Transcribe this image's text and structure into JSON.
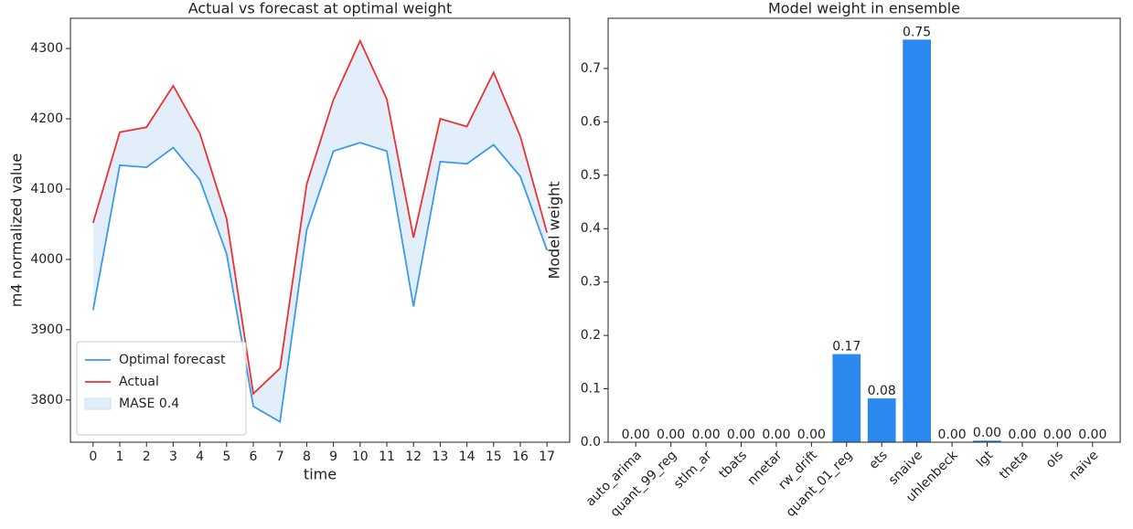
{
  "chart_data": [
    {
      "type": "line",
      "title": "Actual vs forecast at optimal weight",
      "xlabel": "time",
      "ylabel": "m4 normalized value",
      "x": [
        0,
        1,
        2,
        3,
        4,
        5,
        6,
        7,
        8,
        9,
        10,
        11,
        12,
        13,
        14,
        15,
        16,
        17
      ],
      "series": [
        {
          "name": "Optimal forecast",
          "color": "#3d9ae8",
          "values": [
            3928,
            4134,
            4131,
            4159,
            4113,
            4008,
            3791,
            3769,
            4042,
            4154,
            4166,
            4154,
            3933,
            4139,
            4136,
            4163,
            4118,
            4013
          ]
        },
        {
          "name": "Actual",
          "color": "#f03030",
          "values": [
            4052,
            4181,
            4188,
            4247,
            4179,
            4058,
            3809,
            3845,
            4107,
            4227,
            4311,
            4228,
            4031,
            4200,
            4189,
            4266,
            4175,
            4038
          ]
        }
      ],
      "fill": {
        "name": "MASE 0.4",
        "color": "#e3eefb"
      },
      "xlim": [
        -0.85,
        17.85
      ],
      "xticks": [
        0,
        1,
        2,
        3,
        4,
        5,
        6,
        7,
        8,
        9,
        10,
        11,
        12,
        13,
        14,
        15,
        16,
        17
      ],
      "ylim": [
        3740,
        4343
      ],
      "yticks": [
        3800,
        3900,
        4000,
        4100,
        4200,
        4300
      ],
      "legend": "lower left"
    },
    {
      "type": "bar",
      "title": "Model weight in ensemble",
      "ylabel": "Model weight",
      "categories": [
        "auto_arima",
        "quant_99_reg",
        "stlm_ar",
        "tbats",
        "nnetar",
        "rw_drift",
        "quant_01_reg",
        "ets",
        "snaive",
        "uhlenbeck",
        "lgt",
        "theta",
        "ols",
        "naive"
      ],
      "values": [
        0,
        0,
        0,
        0,
        0,
        0,
        0.165,
        0.082,
        0.754,
        0,
        0.003,
        0,
        0,
        0
      ],
      "value_labels": [
        "0.00",
        "0.00",
        "0.00",
        "0.00",
        "0.00",
        "0.00",
        "0.17",
        "0.08",
        "0.75",
        "0.00",
        "0.00",
        "0.00",
        "0.00",
        "0.00"
      ],
      "color": "#2a88ef",
      "ylim": [
        0,
        0.794
      ],
      "yticks": [
        {
          "value": 0,
          "label": "0.0"
        },
        0.1,
        0.2,
        0.3,
        0.4,
        0.5,
        0.6,
        0.7
      ]
    }
  ]
}
